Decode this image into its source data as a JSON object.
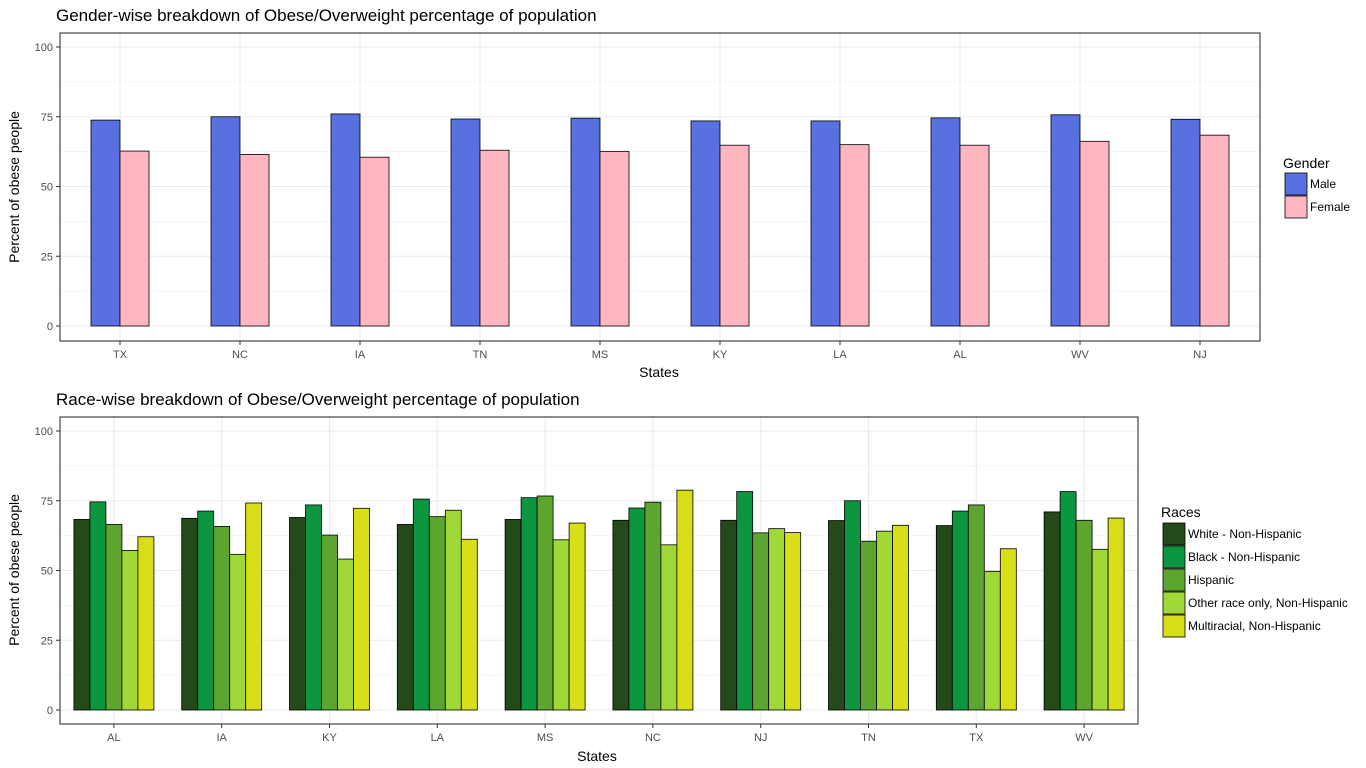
{
  "chart_data": [
    {
      "type": "bar",
      "title": "Gender-wise breakdown of Obese/Overweight percentage of population",
      "xlabel": "States",
      "ylabel": "Percent of obese people",
      "ylim": [
        0,
        100
      ],
      "yticks": [
        0,
        25,
        50,
        75,
        100
      ],
      "grid": true,
      "legend": {
        "title": "Gender",
        "position": "right"
      },
      "categories": [
        "TX",
        "NC",
        "IA",
        "TN",
        "MS",
        "KY",
        "LA",
        "AL",
        "WV",
        "NJ"
      ],
      "series": [
        {
          "name": "Male",
          "color": "#5870e0",
          "values": [
            73.8,
            75.0,
            76.0,
            74.2,
            74.5,
            73.5,
            73.5,
            74.6,
            75.7,
            74.1
          ]
        },
        {
          "name": "Female",
          "color": "#ffb6c1",
          "values": [
            62.7,
            61.5,
            60.5,
            63.0,
            62.6,
            64.8,
            65.0,
            64.8,
            66.2,
            68.4
          ]
        }
      ]
    },
    {
      "type": "bar",
      "title": "Race-wise breakdown of Obese/Overweight percentage of population",
      "xlabel": "States",
      "ylabel": "Percent of obese people",
      "ylim": [
        0,
        100
      ],
      "yticks": [
        0,
        25,
        50,
        75,
        100
      ],
      "grid": true,
      "legend": {
        "title": "Races",
        "position": "right"
      },
      "categories": [
        "AL",
        "IA",
        "KY",
        "LA",
        "MS",
        "NC",
        "NJ",
        "TN",
        "TX",
        "WV"
      ],
      "series": [
        {
          "name": "White - Non-Hispanic",
          "color": "#234a18",
          "values": [
            68.3,
            68.7,
            69.0,
            66.5,
            68.3,
            68.0,
            68.0,
            67.9,
            66.1,
            71.0
          ]
        },
        {
          "name": "Black - Non-Hispanic",
          "color": "#0c9640",
          "values": [
            74.6,
            71.3,
            73.5,
            75.6,
            76.1,
            72.4,
            78.3,
            75.0,
            71.3,
            78.3
          ]
        },
        {
          "name": "Hispanic",
          "color": "#5da52e",
          "values": [
            66.5,
            65.8,
            62.7,
            69.3,
            76.7,
            74.5,
            63.5,
            60.5,
            73.5,
            68.0
          ]
        },
        {
          "name": "Other race only, Non-Hispanic",
          "color": "#a0d838",
          "values": [
            57.2,
            55.8,
            54.1,
            71.6,
            61.0,
            59.2,
            65.0,
            64.1,
            49.7,
            57.6
          ]
        },
        {
          "name": "Multiracial, Non-Hispanic",
          "color": "#d8de18",
          "values": [
            62.1,
            74.2,
            72.3,
            61.2,
            67.0,
            78.8,
            63.6,
            66.2,
            57.8,
            68.8
          ]
        }
      ]
    }
  ]
}
